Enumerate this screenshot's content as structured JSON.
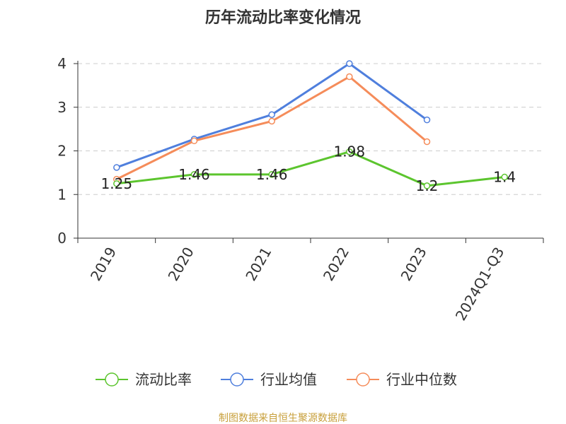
{
  "chart_data": {
    "type": "line",
    "title": "历年流动比率变化情况",
    "categories": [
      "2019",
      "2020",
      "2021",
      "2022",
      "2023",
      "2024Q1-Q3"
    ],
    "ylim": [
      0,
      4
    ],
    "yticks": [
      0,
      1,
      2,
      3,
      4
    ],
    "grid": true,
    "legend_position": "bottom",
    "series": [
      {
        "name": "流动比率",
        "color": "#5cc52e",
        "values": [
          1.25,
          1.46,
          1.46,
          1.98,
          1.2,
          1.4
        ],
        "labels": [
          "1.25",
          "1.46",
          "1.46",
          "1.98",
          "1.2",
          "1.4"
        ]
      },
      {
        "name": "行业均值",
        "color": "#4f7fdd",
        "values": [
          1.62,
          2.27,
          2.83,
          4.0,
          2.71,
          null
        ]
      },
      {
        "name": "行业中位数",
        "color": "#f58c5a",
        "values": [
          1.35,
          2.23,
          2.68,
          3.7,
          2.21,
          null
        ]
      }
    ]
  },
  "source": "制图数据来自恒生聚源数据库"
}
